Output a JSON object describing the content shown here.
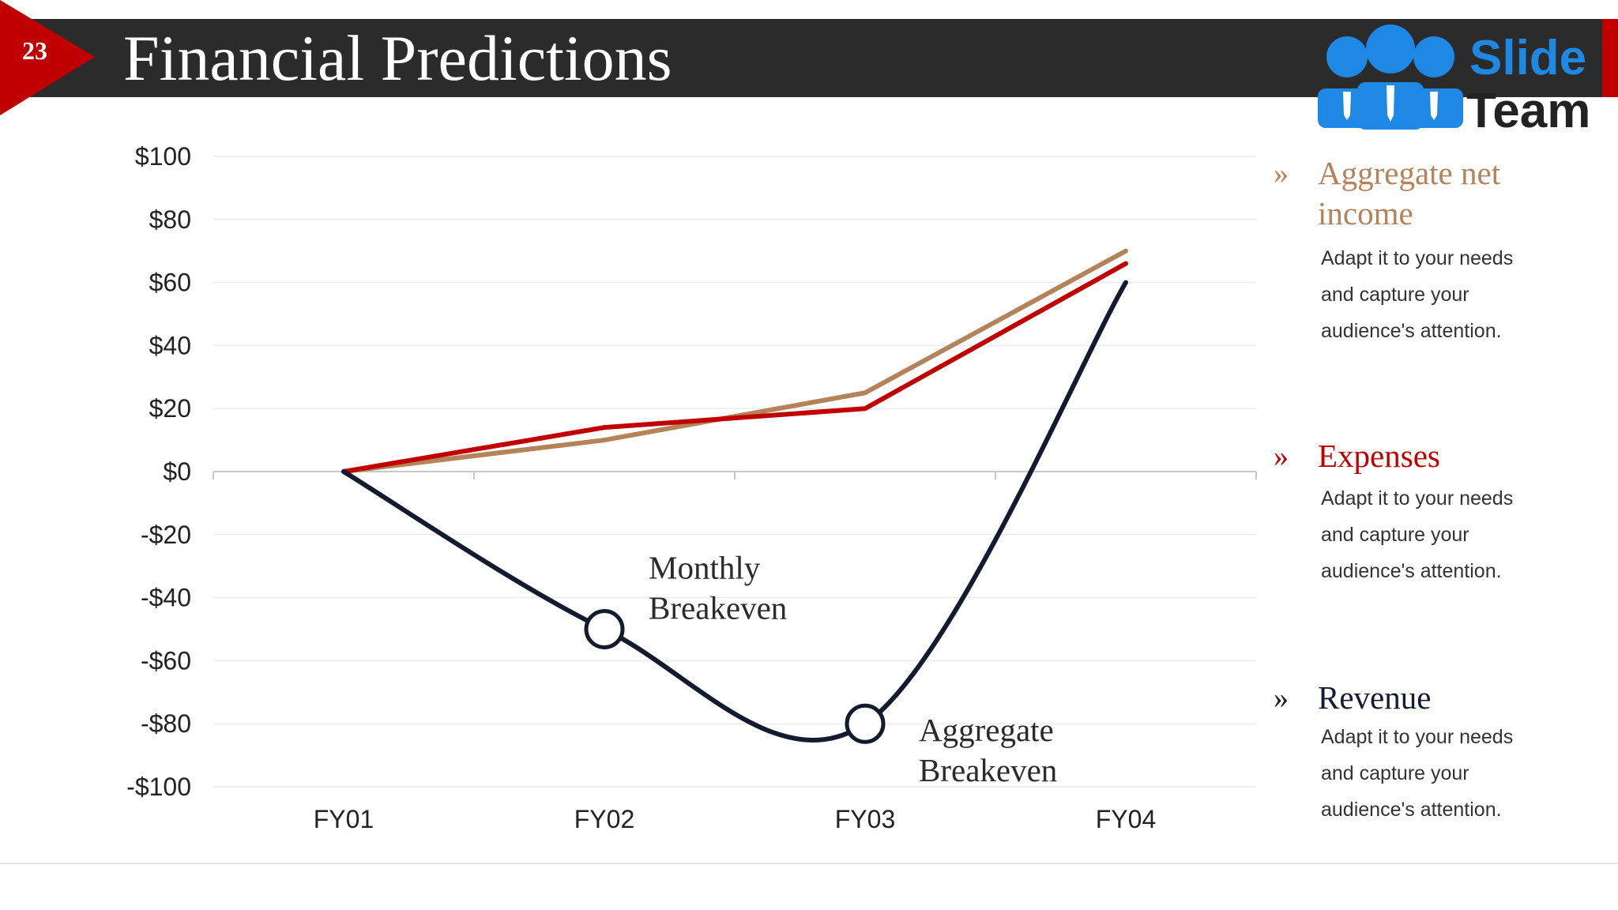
{
  "slide": {
    "number": "23",
    "title": "Financial Predictions",
    "logo_text": [
      "Slide",
      "Team"
    ]
  },
  "colors": {
    "title_bar": "#2b2b2b",
    "accent_red": "#c00000",
    "aggregate_net_income": "#b5835a",
    "expenses": "#c00000",
    "revenue": "#151a2e"
  },
  "chart_data": {
    "type": "line",
    "categories": [
      "FY01",
      "FY02",
      "FY03",
      "FY04"
    ],
    "ytick_labels": [
      "$100",
      "$80",
      "$60",
      "$40",
      "$20",
      "$0",
      "-$20",
      "-$40",
      "-$60",
      "-$80",
      "-$100"
    ],
    "ylim": [
      -100,
      100
    ],
    "ytick_step": 20,
    "grid": true,
    "series": [
      {
        "name": "Aggregate net income",
        "color": "#b5835a",
        "values": [
          0,
          10,
          25,
          70
        ]
      },
      {
        "name": "Expenses",
        "color": "#c00000",
        "values": [
          0,
          14,
          20,
          66
        ]
      },
      {
        "name": "Revenue",
        "color": "#151a2e",
        "values": [
          0,
          -50,
          -80,
          60
        ],
        "smooth": true
      }
    ],
    "annotations": [
      {
        "lines": [
          "Monthly",
          "Breakeven"
        ],
        "series": "Revenue",
        "category": "FY02",
        "value": -50
      },
      {
        "lines": [
          "Aggregate",
          "Breakeven"
        ],
        "series": "Revenue",
        "category": "FY03",
        "value": -80
      }
    ]
  },
  "legend": [
    {
      "label": "Aggregate net income",
      "color": "#b5835a",
      "bullet": "»",
      "desc_lines": [
        "Adapt it to your needs",
        "and capture your",
        "audience's attention."
      ]
    },
    {
      "label": "Expenses",
      "color": "#c00000",
      "bullet": "»",
      "desc_lines": [
        "Adapt it to your needs",
        "and capture your",
        "audience's attention."
      ]
    },
    {
      "label": "Revenue",
      "color": "#151a2e",
      "bullet": "»",
      "desc_lines": [
        "Adapt it to your needs",
        "and capture your",
        "audience's attention."
      ]
    }
  ]
}
